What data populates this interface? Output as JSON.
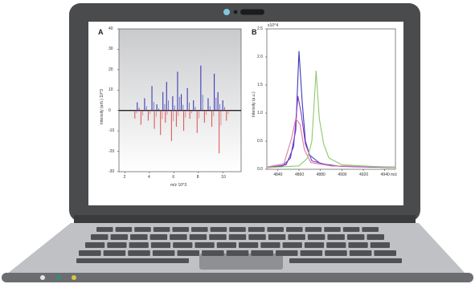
{
  "colors": {
    "laptop_body": "#4a4b4d",
    "screen_bezel": "#3d3e40",
    "keyboard_base": "#bfc1c4",
    "keys": "#505154",
    "trackpad": "#8e9093",
    "led_left": "#e6e6e6",
    "led_mid": "#2e8f7a",
    "led_right": "#d8c640",
    "series_blue": "#3a3ab8",
    "series_red": "#e05a5a",
    "series_purple": "#8a3cc0",
    "series_pink": "#e07aa8",
    "series_green": "#8fc86a"
  },
  "icons": [
    "webcam-icon",
    "webcam-indicator-icon"
  ],
  "chart_data": [
    {
      "type": "line",
      "panel_label": "A",
      "title": "",
      "xlabel": "m/z 10^3",
      "ylabel": "Intensity (arb.) 10^3",
      "x_ticks": [
        "2",
        "4",
        "6",
        "8",
        "10"
      ],
      "y_ticks": [
        "40",
        "30",
        "20",
        "10",
        "0",
        "-10",
        "-20",
        "-30"
      ],
      "xlim": [
        1.5,
        11.5
      ],
      "ylim": [
        -30,
        40
      ],
      "grid": false,
      "series": [
        {
          "color": "blue",
          "peaks": [
            [
              3.0,
              4
            ],
            [
              3.6,
              6
            ],
            [
              4.2,
              12
            ],
            [
              4.6,
              3
            ],
            [
              5.1,
              9
            ],
            [
              5.4,
              14
            ],
            [
              5.9,
              7
            ],
            [
              6.3,
              19
            ],
            [
              6.6,
              8
            ],
            [
              7.1,
              11
            ],
            [
              7.6,
              5
            ],
            [
              8.2,
              22
            ],
            [
              8.8,
              6
            ],
            [
              9.3,
              18
            ],
            [
              9.6,
              9
            ],
            [
              10.0,
              5
            ]
          ]
        },
        {
          "color": "red",
          "peaks": [
            [
              2.8,
              -4
            ],
            [
              3.3,
              -7
            ],
            [
              3.9,
              -5
            ],
            [
              4.4,
              -9
            ],
            [
              4.9,
              -12
            ],
            [
              5.3,
              -6
            ],
            [
              5.8,
              -15
            ],
            [
              6.2,
              -8
            ],
            [
              6.8,
              -10
            ],
            [
              7.3,
              -4
            ],
            [
              7.9,
              -11
            ],
            [
              8.5,
              -6
            ],
            [
              9.1,
              -8
            ],
            [
              9.7,
              -21
            ],
            [
              10.3,
              -5
            ]
          ]
        }
      ]
    },
    {
      "type": "line",
      "panel_label": "B",
      "title": "",
      "multiplier_label": "x10^4",
      "xlabel": "m/z",
      "ylabel": "Intensity (a.u.)",
      "x_ticks": [
        "4840",
        "4860",
        "4880",
        "4900",
        "4920",
        "4940"
      ],
      "y_ticks": [
        "2.5",
        "2.0",
        "1.5",
        "1.0",
        "0.5",
        "0.0"
      ],
      "xlim": [
        4830,
        4950
      ],
      "ylim": [
        0,
        2.5
      ],
      "grid": false,
      "series": [
        {
          "color": "blue",
          "points": [
            [
              4830,
              0.03
            ],
            [
              4845,
              0.06
            ],
            [
              4852,
              0.2
            ],
            [
              4857,
              0.7
            ],
            [
              4860,
              2.1
            ],
            [
              4863,
              1.2
            ],
            [
              4866,
              0.5
            ],
            [
              4870,
              0.25
            ],
            [
              4880,
              0.1
            ],
            [
              4900,
              0.05
            ],
            [
              4950,
              0.03
            ]
          ]
        },
        {
          "color": "purple",
          "points": [
            [
              4830,
              0.03
            ],
            [
              4848,
              0.08
            ],
            [
              4855,
              0.4
            ],
            [
              4859,
              1.3
            ],
            [
              4862,
              1.0
            ],
            [
              4866,
              0.45
            ],
            [
              4872,
              0.15
            ],
            [
              4890,
              0.06
            ],
            [
              4950,
              0.03
            ]
          ]
        },
        {
          "color": "pink",
          "points": [
            [
              4830,
              0.04
            ],
            [
              4846,
              0.1
            ],
            [
              4853,
              0.55
            ],
            [
              4857,
              0.9
            ],
            [
              4861,
              0.8
            ],
            [
              4865,
              0.35
            ],
            [
              4871,
              0.12
            ],
            [
              4890,
              0.06
            ],
            [
              4950,
              0.04
            ]
          ]
        },
        {
          "color": "green",
          "points": [
            [
              4830,
              0.03
            ],
            [
              4860,
              0.06
            ],
            [
              4868,
              0.2
            ],
            [
              4872,
              0.5
            ],
            [
              4876,
              1.75
            ],
            [
              4879,
              0.9
            ],
            [
              4883,
              0.45
            ],
            [
              4888,
              0.2
            ],
            [
              4900,
              0.08
            ],
            [
              4950,
              0.03
            ]
          ]
        }
      ]
    }
  ]
}
